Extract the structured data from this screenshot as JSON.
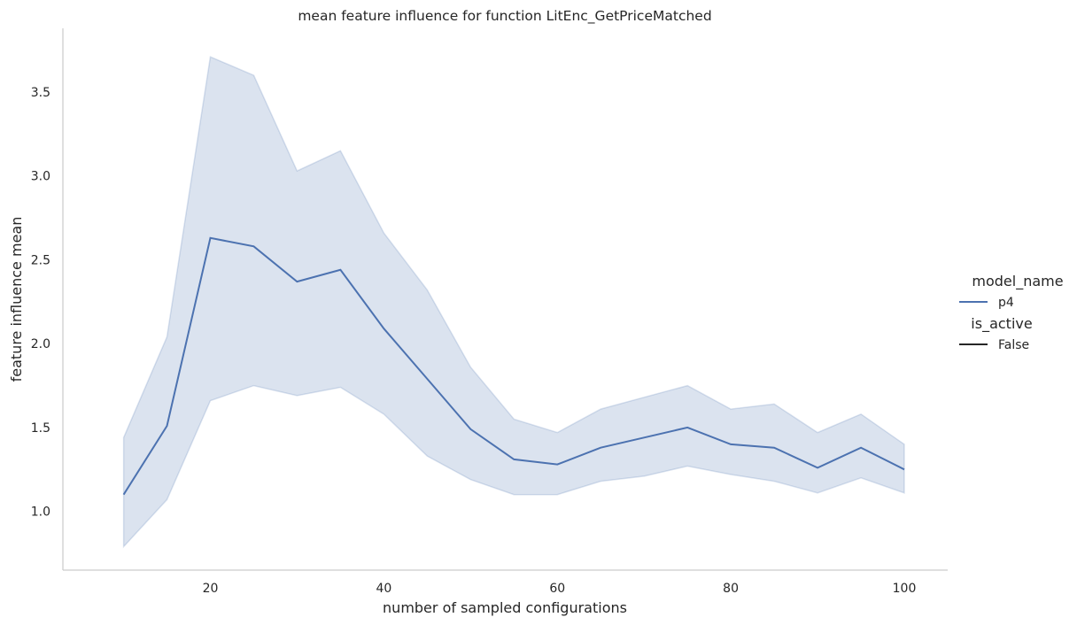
{
  "chart_data": {
    "type": "line",
    "title": "mean feature influence for function LitEnc_GetPriceMatched",
    "xlabel": "number of sampled configurations",
    "ylabel": "feature influence mean",
    "xlim": [
      3,
      105
    ],
    "ylim": [
      0.65,
      3.88
    ],
    "xticks": [
      20,
      40,
      60,
      80,
      100
    ],
    "yticks": [
      1.0,
      1.5,
      2.0,
      2.5,
      3.0,
      3.5
    ],
    "xtick_labels": [
      "20",
      "40",
      "60",
      "80",
      "100"
    ],
    "ytick_labels": [
      "1.0",
      "1.5",
      "2.0",
      "2.5",
      "3.0",
      "3.5"
    ],
    "grid": false,
    "legend_position": "right",
    "x": [
      10,
      15,
      20,
      25,
      30,
      35,
      40,
      45,
      50,
      55,
      60,
      65,
      70,
      75,
      80,
      85,
      90,
      95,
      100
    ],
    "series": [
      {
        "name": "p4",
        "color": "#4c72b0",
        "band_color": "#4c72b0",
        "values": [
          1.1,
          1.51,
          2.63,
          2.58,
          2.37,
          2.44,
          2.09,
          1.79,
          1.49,
          1.31,
          1.28,
          1.38,
          1.44,
          1.5,
          1.4,
          1.38,
          1.26,
          1.38,
          1.25
        ],
        "ci_lower": [
          0.79,
          1.07,
          1.66,
          1.75,
          1.69,
          1.74,
          1.58,
          1.33,
          1.19,
          1.1,
          1.1,
          1.18,
          1.21,
          1.27,
          1.22,
          1.18,
          1.11,
          1.2,
          1.11
        ],
        "ci_upper": [
          1.44,
          2.04,
          3.71,
          3.6,
          3.03,
          3.15,
          2.66,
          2.32,
          1.86,
          1.55,
          1.47,
          1.61,
          1.68,
          1.75,
          1.61,
          1.64,
          1.47,
          1.58,
          1.4
        ]
      }
    ],
    "legend": {
      "groups": [
        {
          "heading": "model_name",
          "entries": [
            {
              "label": "p4",
              "color": "#4c72b0"
            }
          ]
        },
        {
          "heading": "is_active",
          "entries": [
            {
              "label": "False",
              "color": "#262626"
            }
          ]
        }
      ]
    }
  }
}
